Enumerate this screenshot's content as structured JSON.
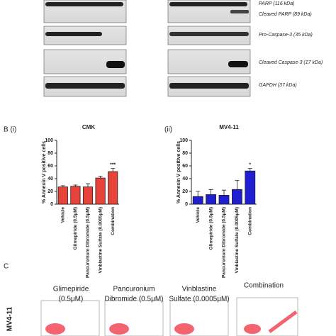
{
  "blots": {
    "labels": [
      "PARP (116 kDa)",
      "Cleaved PARP (89 kDa)",
      "Pro-Caspase-3 (35 kDa)",
      "Cleaved Caspase-3 (17 kDa)",
      "GAPDH (37 kDa)"
    ]
  },
  "panels": {
    "b_left": "B (i)",
    "b_right": "(ii)",
    "c": "C"
  },
  "chart_data": [
    {
      "type": "bar",
      "title": "CMK",
      "ylabel": "% Annexin V positive cells",
      "categories": [
        "Vehicle",
        "Glimepiride (0.5μM)",
        "Pancuronium Dibromide (0.5μM)",
        "Vinblastine Sulfate (0.0005μM)",
        "Combination"
      ],
      "values": [
        27,
        28,
        27,
        41,
        51
      ],
      "errors": [
        2,
        2,
        5,
        3,
        5
      ],
      "significance": [
        null,
        null,
        null,
        null,
        "***"
      ],
      "color": "#e8433a",
      "ylim": [
        0,
        100
      ],
      "yticks": [
        0,
        20,
        40,
        60,
        80,
        100
      ]
    },
    {
      "type": "bar",
      "title": "MV4-11",
      "ylabel": "% Annexin V positive cells",
      "categories": [
        "Vehicle",
        "Glimepiride (0.5μM)",
        "Pancuronium Dibromide (0.5μM)",
        "Vinblastine Sulfate (0.0005μM)",
        "Combination"
      ],
      "values": [
        12,
        15,
        14,
        23,
        52
      ],
      "errors": [
        8,
        8,
        8,
        14,
        4
      ],
      "significance": [
        null,
        null,
        null,
        null,
        "*"
      ],
      "color": "#1f1fd1",
      "ylim": [
        0,
        100
      ],
      "yticks": [
        0,
        20,
        40,
        60,
        80,
        100
      ]
    }
  ],
  "flow": {
    "row_label": "MV4-11",
    "conditions": [
      [
        "Glimepiride",
        "(0.5μM)"
      ],
      [
        "Pancuronium",
        "Dibromide (0.5μM)"
      ],
      [
        "Vinblastine",
        "Sulfate (0.0005μM)"
      ],
      [
        "Combination"
      ]
    ]
  }
}
